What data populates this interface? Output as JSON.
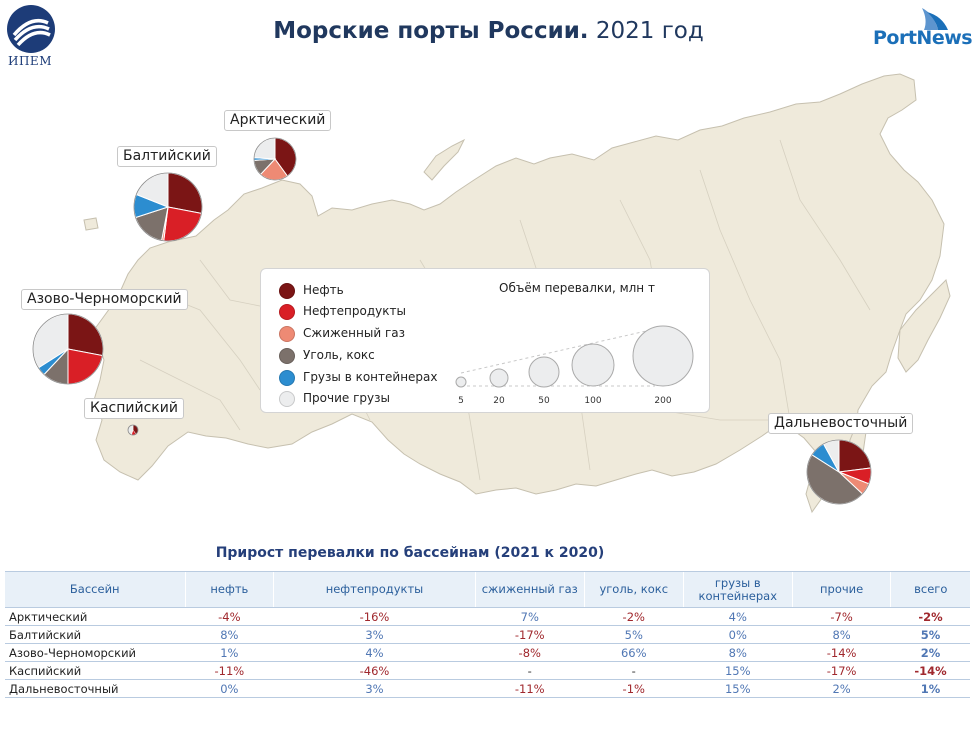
{
  "header": {
    "title_bold": "Морские порты России.",
    "title_normal": "2021 год",
    "left_logo_text": "ИПЕМ",
    "right_logo_text": "PortNews"
  },
  "colors": {
    "oil": "#7b1515",
    "oil_products": "#d91f26",
    "lng": "#ee8a74",
    "coal": "#7c716b",
    "containers": "#2c8dd0",
    "other": "#ecedee",
    "map_land": "#efeadb",
    "map_border": "#c6c0af"
  },
  "legend": {
    "items": [
      {
        "label": "Нефть",
        "color": "#7b1515"
      },
      {
        "label": "Нефтепродукты",
        "color": "#d91f26"
      },
      {
        "label": "Сжиженный газ",
        "color": "#ee8a74"
      },
      {
        "label": "Уголь, кокс",
        "color": "#7c716b"
      },
      {
        "label": "Грузы в контейнерах",
        "color": "#2c8dd0"
      },
      {
        "label": "Прочие грузы",
        "color": "#ecedee"
      }
    ],
    "size_title": "Объём перевалки, млн т",
    "size_scale": [
      5,
      20,
      50,
      100,
      200
    ]
  },
  "chart_data": {
    "type": "pie",
    "title": "Морские порты России. 2021 год",
    "categories": [
      "Нефть",
      "Нефтепродукты",
      "Сжиженный газ",
      "Уголь, кокс",
      "Грузы в контейнерах",
      "Прочие грузы"
    ],
    "series": [
      {
        "name": "Арктический",
        "total_mt": 90,
        "shares": [
          0.4,
          0.0,
          0.22,
          0.12,
          0.02,
          0.24
        ]
      },
      {
        "name": "Балтийский",
        "total_mt": 250,
        "shares": [
          0.28,
          0.24,
          0.01,
          0.17,
          0.11,
          0.19
        ]
      },
      {
        "name": "Азово-Черноморский",
        "total_mt": 260,
        "shares": [
          0.28,
          0.22,
          0.0,
          0.12,
          0.04,
          0.34
        ]
      },
      {
        "name": "Каспийский",
        "total_mt": 5,
        "shares": [
          0.4,
          0.15,
          0.0,
          0.0,
          0.0,
          0.45
        ]
      },
      {
        "name": "Дальневосточный",
        "total_mt": 225,
        "shares": [
          0.23,
          0.08,
          0.06,
          0.47,
          0.08,
          0.08
        ]
      }
    ]
  },
  "growth_table": {
    "title": "Прирост перевалки по бассейнам (2021 к 2020)",
    "headers": [
      "Бассейн",
      "нефть",
      "нефтепродукты",
      "сжиженный газ",
      "уголь, кокс",
      "грузы в контейнерах",
      "прочие",
      "всего"
    ],
    "rows": [
      {
        "basin": "Арктический",
        "values": [
          "-4%",
          "-16%",
          "7%",
          "-2%",
          "4%",
          "-7%",
          "-2%"
        ]
      },
      {
        "basin": "Балтийский",
        "values": [
          "8%",
          "3%",
          "-17%",
          "5%",
          "0%",
          "8%",
          "5%"
        ]
      },
      {
        "basin": "Азово-Черноморский",
        "values": [
          "1%",
          "4%",
          "-8%",
          "66%",
          "8%",
          "-14%",
          "2%"
        ]
      },
      {
        "basin": "Каспийский",
        "values": [
          "-11%",
          "-46%",
          "-",
          "-",
          "15%",
          "-17%",
          "-14%"
        ]
      },
      {
        "basin": "Дальневосточный",
        "values": [
          "0%",
          "3%",
          "-11%",
          "-1%",
          "15%",
          "2%",
          "1%"
        ]
      }
    ]
  }
}
